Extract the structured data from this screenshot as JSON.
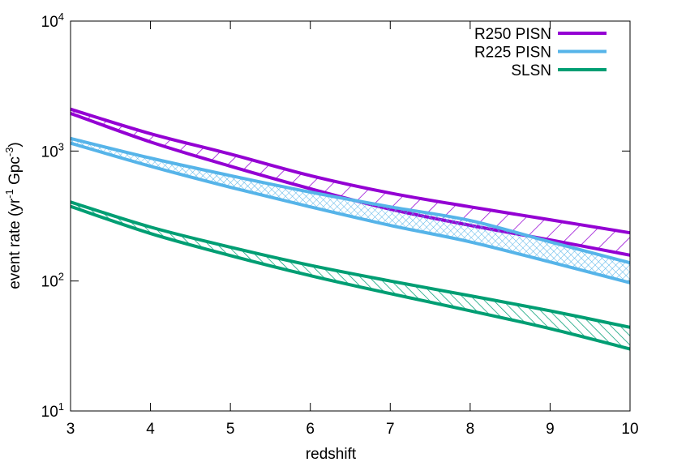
{
  "chart_data": {
    "type": "band",
    "xlabel": "redshift",
    "ylabel": "event rate (yr^-1 Gpc^-3)",
    "x": [
      3,
      4,
      5,
      6,
      7,
      8,
      9,
      10
    ],
    "xlim": [
      3,
      10
    ],
    "xticks": [
      3,
      4,
      5,
      6,
      7,
      8,
      9,
      10
    ],
    "ylim": [
      10,
      10000
    ],
    "yscale": "log",
    "yticks": [
      {
        "value": 10,
        "label": "10^1"
      },
      {
        "value": 100,
        "label": "10^2"
      },
      {
        "value": 1000,
        "label": "10^3"
      },
      {
        "value": 10000,
        "label": "10^4"
      }
    ],
    "legend": "top right",
    "series": [
      {
        "name": "R250 PISN",
        "color": "#9400d3",
        "hatch": "diagonal",
        "upper": [
          2100,
          1360,
          948,
          647,
          475,
          372,
          296,
          235
        ],
        "lower": [
          1950,
          1175,
          764,
          513,
          357,
          268,
          207,
          158
        ]
      },
      {
        "name": "R225 PISN",
        "color": "#56b4e9",
        "hatch": "cross",
        "upper": [
          1250,
          883,
          647,
          483,
          372,
          292,
          200,
          138
        ],
        "lower": [
          1150,
          764,
          526,
          372,
          268,
          200,
          140,
          97
        ]
      },
      {
        "name": "SLSN",
        "color": "#009e73",
        "hatch": "backslash",
        "upper": [
          405,
          260,
          182,
          132,
          100,
          77,
          59,
          44
        ],
        "lower": [
          375,
          232,
          157,
          110,
          80,
          59,
          43,
          30
        ]
      }
    ]
  }
}
